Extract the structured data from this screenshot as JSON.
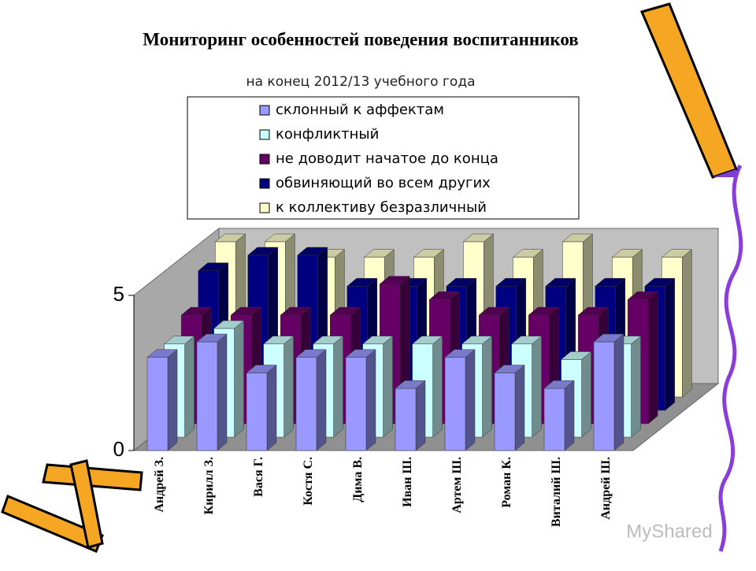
{
  "chart_data": {
    "type": "bar3d",
    "title": "Мониторинг особенностей поведения воспитанников",
    "subtitle": "на конец 2012/13 учебного года",
    "categories": [
      "Андрей З.",
      "Кирилл З.",
      "Вася Г.",
      "Костя С.",
      "Дима В.",
      "Иван Ш.",
      "Артем Ш.",
      "Роман К.",
      "Виталий Ш.",
      "Андрей Ш."
    ],
    "series": [
      {
        "name": "склонный к аффектам",
        "color": "#9999ff",
        "values": [
          3,
          3.5,
          2.5,
          3,
          3,
          2,
          3,
          2.5,
          2,
          3.5
        ]
      },
      {
        "name": "конфликтный",
        "color": "#ccffff",
        "values": [
          3,
          3.5,
          3,
          3,
          3,
          3,
          3,
          3,
          2.5,
          3
        ]
      },
      {
        "name": "не доводит начатое до конца",
        "color": "#660066",
        "values": [
          3.5,
          3.5,
          3.5,
          3.5,
          4.5,
          4,
          3.5,
          3.5,
          3.5,
          4
        ]
      },
      {
        "name": "обвиняющий во всем других",
        "color": "#000080",
        "values": [
          4.5,
          5,
          5,
          4,
          4,
          4,
          4,
          4,
          4,
          4
        ]
      },
      {
        "name": "к коллективу безразличный",
        "color": "#ffffcc",
        "values": [
          5,
          5,
          4.5,
          4.5,
          4.5,
          5,
          4.5,
          5,
          4.5,
          4.5
        ]
      }
    ],
    "ylim": [
      0,
      5
    ],
    "yticks": [
      0,
      5
    ],
    "watermark": "MyShared"
  }
}
